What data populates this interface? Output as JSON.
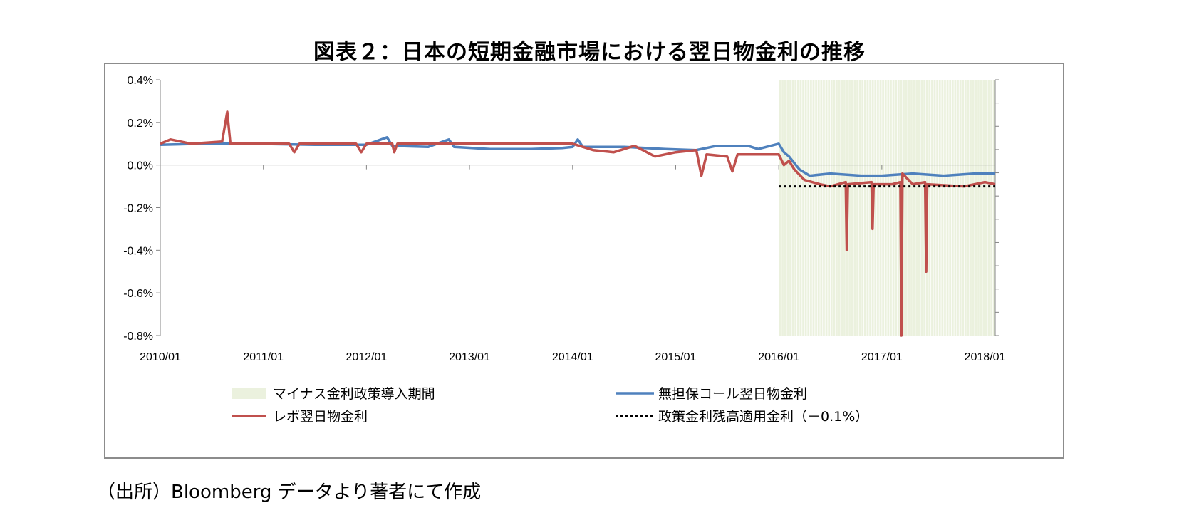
{
  "title": "図表２：日本の短期金融市場における翌日物金利の推移",
  "source_note": "（出所）Bloomberg データより著者にて作成",
  "chart_data": {
    "type": "line",
    "title": "図表２：日本の短期金融市場における翌日物金利の推移",
    "xlabel": "",
    "ylabel": "",
    "x_ticks": [
      "2010/01",
      "2011/01",
      "2012/01",
      "2013/01",
      "2014/01",
      "2015/01",
      "2016/01",
      "2017/01",
      "2018/01"
    ],
    "y_ticks": [
      "0.4%",
      "0.2%",
      "0.0%",
      "-0.2%",
      "-0.4%",
      "-0.6%",
      "-0.8%"
    ],
    "ylim": [
      -0.8,
      0.4
    ],
    "xlim": [
      2010.0,
      2018.1
    ],
    "grid": false,
    "legend_position": "bottom",
    "shaded_region": {
      "name": "マイナス金利政策導入期間",
      "from": 2016.0,
      "to": 2018.1,
      "color": "#ebf1de"
    },
    "reference_line": {
      "name": "政策金利残高適用金利（－0.1%）",
      "value": -0.1,
      "from": 2016.0,
      "to": 2018.1,
      "style": "dotted",
      "color": "#000000"
    },
    "series": [
      {
        "name": "無担保コール翌日物金利",
        "color": "#4f81bd",
        "points": [
          [
            2010.0,
            0.095
          ],
          [
            2010.4,
            0.1
          ],
          [
            2010.9,
            0.1
          ],
          [
            2011.5,
            0.095
          ],
          [
            2012.0,
            0.095
          ],
          [
            2012.2,
            0.13
          ],
          [
            2012.25,
            0.09
          ],
          [
            2012.6,
            0.085
          ],
          [
            2012.8,
            0.12
          ],
          [
            2012.85,
            0.085
          ],
          [
            2013.2,
            0.075
          ],
          [
            2013.6,
            0.075
          ],
          [
            2013.9,
            0.08
          ],
          [
            2014.0,
            0.085
          ],
          [
            2014.05,
            0.12
          ],
          [
            2014.1,
            0.085
          ],
          [
            2014.5,
            0.085
          ],
          [
            2014.9,
            0.075
          ],
          [
            2015.2,
            0.07
          ],
          [
            2015.4,
            0.09
          ],
          [
            2015.7,
            0.09
          ],
          [
            2015.8,
            0.075
          ],
          [
            2016.0,
            0.1
          ],
          [
            2016.05,
            0.06
          ],
          [
            2016.1,
            0.04
          ],
          [
            2016.2,
            -0.02
          ],
          [
            2016.3,
            -0.05
          ],
          [
            2016.5,
            -0.04
          ],
          [
            2016.8,
            -0.05
          ],
          [
            2017.0,
            -0.05
          ],
          [
            2017.3,
            -0.04
          ],
          [
            2017.6,
            -0.05
          ],
          [
            2017.9,
            -0.04
          ],
          [
            2018.1,
            -0.04
          ]
        ]
      },
      {
        "name": "レポ翌日物金利",
        "color": "#c0504d",
        "points": [
          [
            2010.0,
            0.1
          ],
          [
            2010.1,
            0.12
          ],
          [
            2010.3,
            0.1
          ],
          [
            2010.6,
            0.11
          ],
          [
            2010.65,
            0.25
          ],
          [
            2010.68,
            0.1
          ],
          [
            2011.25,
            0.1
          ],
          [
            2011.3,
            0.06
          ],
          [
            2011.35,
            0.1
          ],
          [
            2011.9,
            0.1
          ],
          [
            2011.95,
            0.06
          ],
          [
            2012.0,
            0.1
          ],
          [
            2012.25,
            0.1
          ],
          [
            2012.27,
            0.06
          ],
          [
            2012.3,
            0.1
          ],
          [
            2013.5,
            0.1
          ],
          [
            2014.0,
            0.1
          ],
          [
            2014.2,
            0.07
          ],
          [
            2014.4,
            0.06
          ],
          [
            2014.6,
            0.09
          ],
          [
            2014.8,
            0.04
          ],
          [
            2015.0,
            0.06
          ],
          [
            2015.2,
            0.07
          ],
          [
            2015.25,
            -0.05
          ],
          [
            2015.3,
            0.05
          ],
          [
            2015.5,
            0.04
          ],
          [
            2015.55,
            -0.03
          ],
          [
            2015.6,
            0.05
          ],
          [
            2015.8,
            0.05
          ],
          [
            2016.0,
            0.05
          ],
          [
            2016.05,
            0.0
          ],
          [
            2016.1,
            0.02
          ],
          [
            2016.15,
            -0.02
          ],
          [
            2016.25,
            -0.07
          ],
          [
            2016.4,
            -0.09
          ],
          [
            2016.5,
            -0.1
          ],
          [
            2016.65,
            -0.08
          ],
          [
            2016.66,
            -0.4
          ],
          [
            2016.67,
            -0.09
          ],
          [
            2016.9,
            -0.08
          ],
          [
            2016.91,
            -0.3
          ],
          [
            2016.92,
            -0.09
          ],
          [
            2017.1,
            -0.09
          ],
          [
            2017.18,
            -0.08
          ],
          [
            2017.19,
            -0.8
          ],
          [
            2017.2,
            -0.04
          ],
          [
            2017.3,
            -0.09
          ],
          [
            2017.42,
            -0.08
          ],
          [
            2017.43,
            -0.5
          ],
          [
            2017.44,
            -0.09
          ],
          [
            2017.8,
            -0.1
          ],
          [
            2017.9,
            -0.09
          ],
          [
            2018.0,
            -0.08
          ],
          [
            2018.1,
            -0.09
          ]
        ]
      }
    ]
  }
}
